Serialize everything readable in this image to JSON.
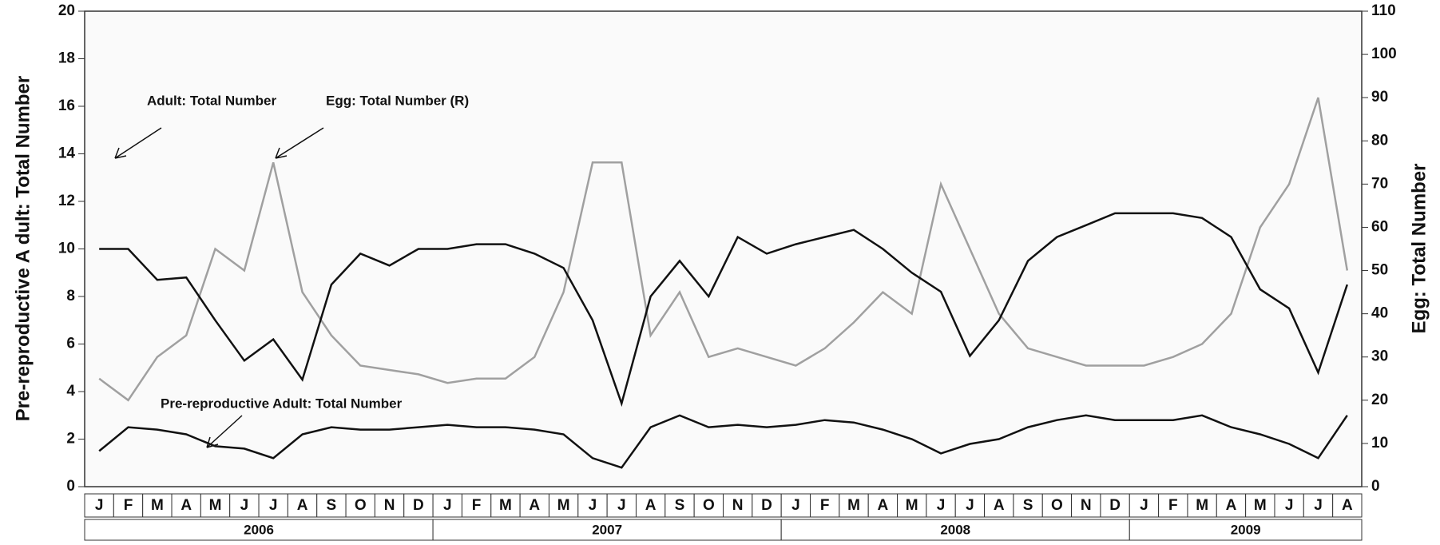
{
  "chart_data": {
    "type": "line",
    "y_label": "Pre-reproductive A dult: Total Number",
    "y2_label": "Egg: Total Number",
    "annotations": [
      "Adult: Total Number",
      "Egg: Total Number (R)",
      "Pre-reproductive Adult: Total Number"
    ],
    "categories": [
      "J",
      "F",
      "M",
      "A",
      "M",
      "J",
      "J",
      "A",
      "S",
      "O",
      "N",
      "D",
      "J",
      "F",
      "M",
      "A",
      "M",
      "J",
      "J",
      "A",
      "S",
      "O",
      "N",
      "D",
      "J",
      "F",
      "M",
      "A",
      "M",
      "J",
      "J",
      "A",
      "S",
      "O",
      "N",
      "D",
      "J",
      "F",
      "M",
      "A",
      "M",
      "J",
      "J",
      "A"
    ],
    "years": [
      {
        "label": "2006",
        "months": 12
      },
      {
        "label": "2007",
        "months": 12
      },
      {
        "label": "2008",
        "months": 12
      },
      {
        "label": "2009",
        "months": 8
      }
    ],
    "ylim": [
      0,
      20
    ],
    "yticks": [
      0,
      2,
      4,
      6,
      8,
      10,
      12,
      14,
      16,
      18,
      20
    ],
    "y2lim": [
      0,
      110
    ],
    "y2ticks": [
      0,
      10,
      20,
      30,
      40,
      50,
      60,
      70,
      80,
      90,
      100,
      110
    ],
    "grid": false,
    "series": [
      {
        "name": "Adult: Total Number",
        "color": "#111111",
        "values": [
          10,
          10,
          8.7,
          8.8,
          7,
          5.3,
          6.2,
          4.5,
          8.5,
          9.8,
          9.3,
          10,
          10,
          10.2,
          10.2,
          9.8,
          9.2,
          7,
          3.5,
          8,
          9.5,
          8,
          10.5,
          9.8,
          10.2,
          10.5,
          10.8,
          10,
          9,
          8.2,
          5.5,
          7,
          9.5,
          10.5,
          11,
          11.5,
          11.5,
          11.5,
          11.3,
          10.5,
          8.3,
          7.5,
          4.8,
          8.5
        ]
      },
      {
        "name": "Pre-reproductive Adult: Total Number",
        "color": "#111111",
        "values": [
          1.5,
          2.5,
          2.4,
          2.2,
          1.7,
          1.6,
          1.2,
          2.2,
          2.5,
          2.4,
          2.4,
          2.5,
          2.6,
          2.5,
          2.5,
          2.4,
          2.2,
          1.2,
          0.8,
          2.5,
          3,
          2.5,
          2.6,
          2.5,
          2.6,
          2.8,
          2.7,
          2.4,
          2,
          1.4,
          1.8,
          2,
          2.5,
          2.8,
          3,
          2.8,
          2.8,
          2.8,
          3,
          2.5,
          2.2,
          1.8,
          1.2,
          3
        ]
      },
      {
        "name": "Egg: Total Number (R)",
        "color": "#a0a0a0",
        "axis": "y2",
        "values": [
          25,
          20,
          30,
          35,
          55,
          50,
          75,
          45,
          35,
          28,
          27,
          26,
          24,
          25,
          25,
          30,
          45,
          75,
          75,
          35,
          45,
          30,
          32,
          30,
          28,
          32,
          38,
          45,
          40,
          70,
          55,
          40,
          32,
          30,
          28,
          28,
          28,
          30,
          33,
          40,
          60,
          70,
          90,
          50
        ]
      }
    ]
  }
}
